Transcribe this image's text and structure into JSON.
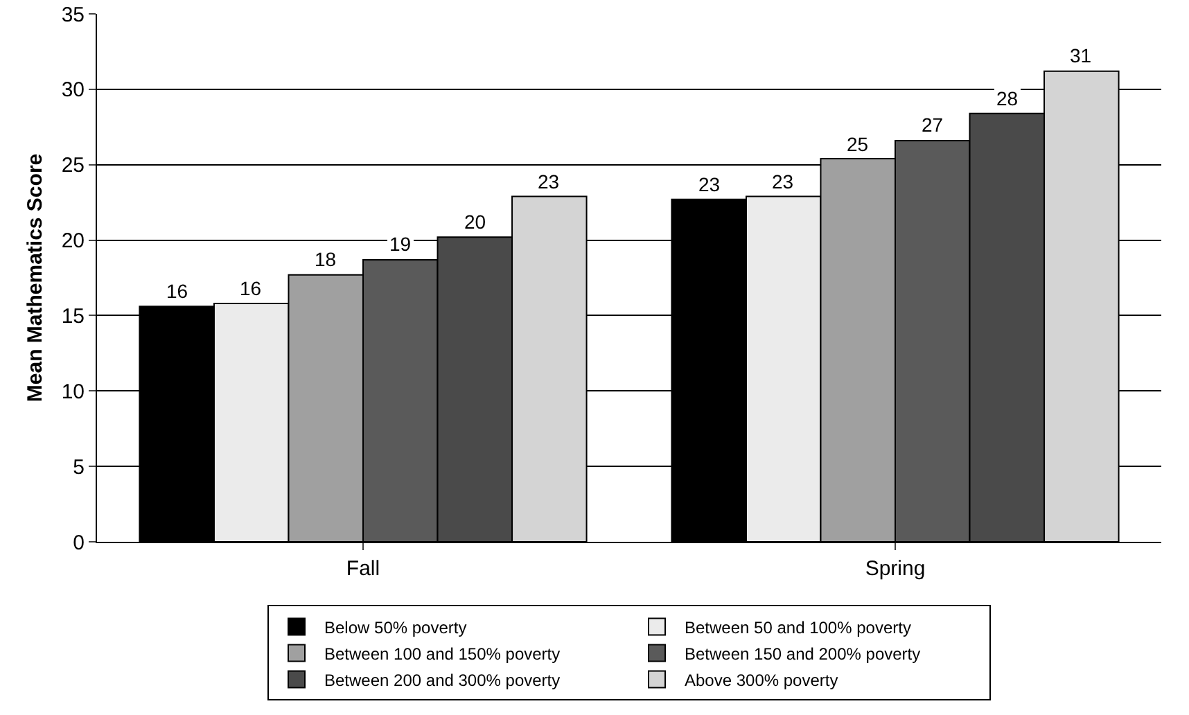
{
  "chart_data": {
    "type": "bar",
    "ylabel": "Mean Mathematics Score",
    "categories": [
      "Fall",
      "Spring"
    ],
    "series": [
      {
        "name": "Below 50% poverty",
        "color": "#000000",
        "values": [
          15.6,
          22.7
        ],
        "value_labels": [
          "16",
          "23"
        ]
      },
      {
        "name": "Between 50 and 100% poverty",
        "color": "#ebebeb",
        "values": [
          15.8,
          22.9
        ],
        "value_labels": [
          "16",
          "23"
        ]
      },
      {
        "name": "Between 100 and 150% poverty",
        "color": "#a0a0a0",
        "values": [
          17.7,
          25.4
        ],
        "value_labels": [
          "18",
          "25"
        ]
      },
      {
        "name": "Between 150 and 200% poverty",
        "color": "#5a5a5a",
        "values": [
          18.7,
          26.6
        ],
        "value_labels": [
          "19",
          "27"
        ]
      },
      {
        "name": "Between 200 and 300% poverty",
        "color": "#4a4a4a",
        "values": [
          20.2,
          28.4
        ],
        "value_labels": [
          "20",
          "28"
        ]
      },
      {
        "name": "Above 300% poverty",
        "color": "#d4d4d4",
        "values": [
          22.9,
          31.2
        ],
        "value_labels": [
          "23",
          "31"
        ]
      }
    ],
    "ylim": [
      0,
      35
    ],
    "yticks": [
      0,
      5,
      10,
      15,
      20,
      25,
      30,
      35
    ],
    "grid": "y",
    "legend": "bottom"
  }
}
